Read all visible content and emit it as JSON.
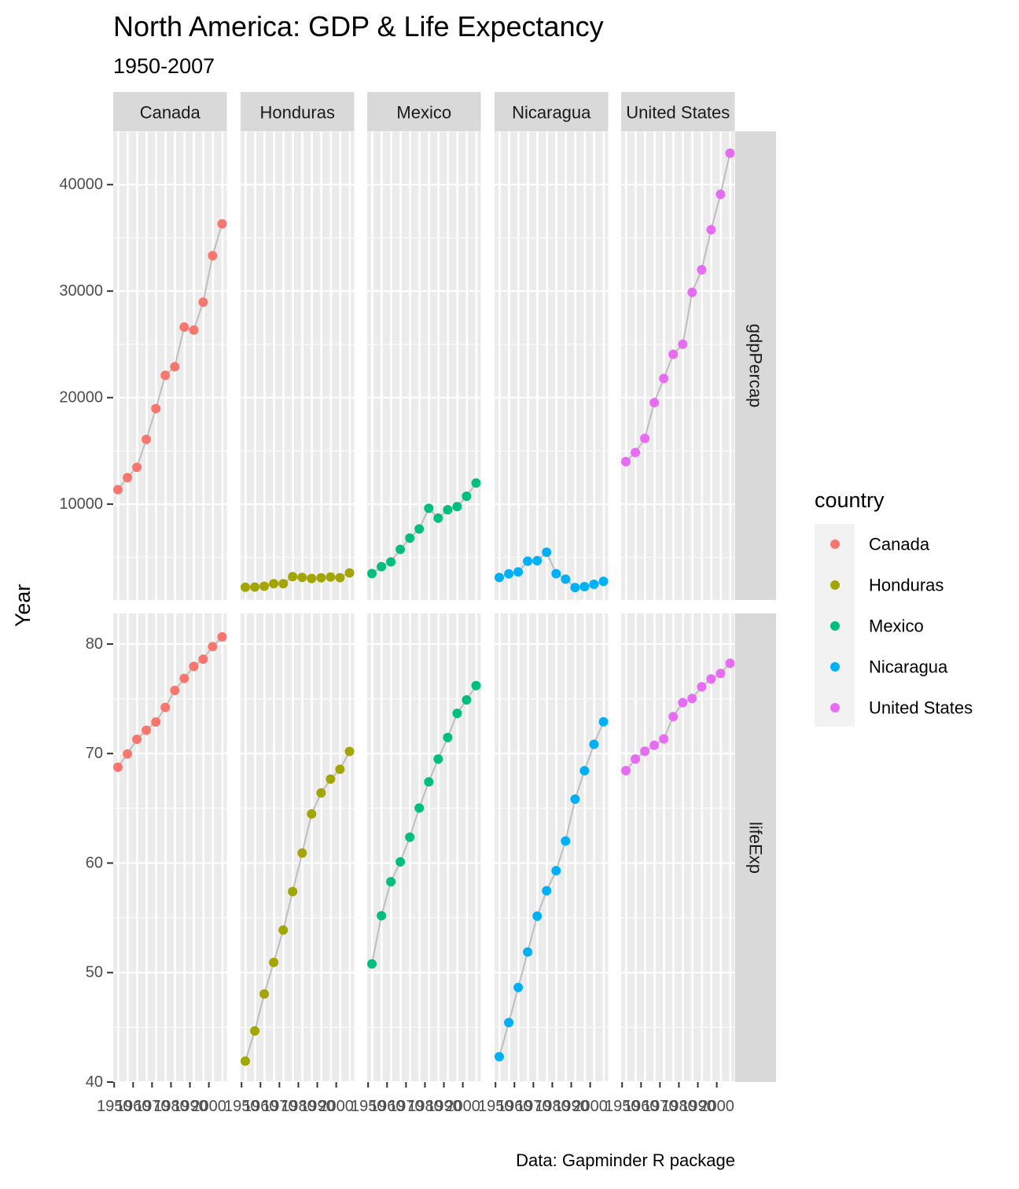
{
  "chart_data": {
    "type": "scatter",
    "title": "North America: GDP & Life Expectancy",
    "subtitle": "1950-2007",
    "ylabel": "Year",
    "caption": "Data: Gapminder R package",
    "facets_cols": [
      "Canada",
      "Honduras",
      "Mexico",
      "Nicaragua",
      "United States"
    ],
    "facets_rows": [
      "gdpPercap",
      "lifeExp"
    ],
    "col_display": [
      "Canada",
      "Honduras",
      "Mexico",
      "Nicaragua",
      "United States"
    ],
    "x": [
      1952,
      1957,
      1962,
      1967,
      1972,
      1977,
      1982,
      1987,
      1992,
      1997,
      2002,
      2007
    ],
    "x_tick_values": [
      1950,
      1960,
      1970,
      1980,
      1990,
      2000
    ],
    "x_tick_labels": [
      "1950",
      "1960",
      "1970",
      "1980",
      "1990",
      "2000"
    ],
    "xlim": [
      1949.5,
      2009.5
    ],
    "rows": {
      "gdpPercap": {
        "ylim": [
          1000,
          45000
        ],
        "y_tick_values": [
          10000,
          20000,
          30000,
          40000
        ],
        "y_tick_labels": [
          "10000",
          "20000",
          "30000",
          "40000"
        ]
      },
      "lifeExp": {
        "ylim": [
          40,
          82.8
        ],
        "y_tick_values": [
          40,
          50,
          60,
          70,
          80
        ],
        "y_tick_labels": [
          "40",
          "50",
          "60",
          "70",
          "80"
        ]
      }
    },
    "legend": {
      "title": "country",
      "placement": "right",
      "entries": [
        "Canada",
        "Honduras",
        "Mexico",
        "Nicaragua",
        "United States"
      ]
    },
    "colors": {
      "Canada": "#F8766D",
      "Honduras": "#A3A500",
      "Mexico": "#00BF7D",
      "Nicaragua": "#00B0F6",
      "United States": "#E76BF3",
      "line": "#BEBEBE",
      "panel": "#EBEBEB",
      "strip": "#D9D9D9"
    },
    "series": [
      {
        "name": "Canada",
        "gdpPercap": [
          11367,
          12490,
          13462,
          16077,
          18971,
          22091,
          22899,
          26627,
          26343,
          28955,
          33329,
          36319
        ],
        "lifeExp": [
          68.75,
          69.96,
          71.3,
          72.13,
          72.88,
          74.21,
          75.76,
          76.86,
          77.95,
          78.61,
          79.77,
          80.65
        ]
      },
      {
        "name": "Honduras",
        "gdpPercap": [
          2195,
          2220,
          2292,
          2538,
          2529,
          3203,
          3121,
          3023,
          3082,
          3160,
          3099,
          3548
        ],
        "lifeExp": [
          41.91,
          44.67,
          48.04,
          50.92,
          53.88,
          57.4,
          60.91,
          64.49,
          66.4,
          67.66,
          68.57,
          70.2
        ]
      },
      {
        "name": "Mexico",
        "gdpPercap": [
          3478,
          4132,
          4582,
          5755,
          6809,
          7675,
          9611,
          8688,
          9472,
          9767,
          10742,
          11978
        ],
        "lifeExp": [
          50.79,
          55.19,
          58.3,
          60.11,
          62.36,
          65.03,
          67.41,
          69.5,
          71.46,
          73.67,
          74.9,
          76.2
        ]
      },
      {
        "name": "Nicaragua",
        "gdpPercap": [
          3112,
          3457,
          3634,
          4644,
          4689,
          5487,
          3470,
          2955,
          2171,
          2253,
          2475,
          2749
        ],
        "lifeExp": [
          42.31,
          45.43,
          48.63,
          51.88,
          55.15,
          57.47,
          59.3,
          62.01,
          65.84,
          68.43,
          70.84,
          72.9
        ]
      },
      {
        "name": "United States",
        "gdpPercap": [
          13990,
          14847,
          16173,
          19531,
          21806,
          24073,
          25010,
          29884,
          32004,
          35767,
          39097,
          42952
        ],
        "lifeExp": [
          68.44,
          69.49,
          70.21,
          70.76,
          71.34,
          73.38,
          74.65,
          75.02,
          76.09,
          76.81,
          77.31,
          78.24
        ]
      }
    ]
  }
}
